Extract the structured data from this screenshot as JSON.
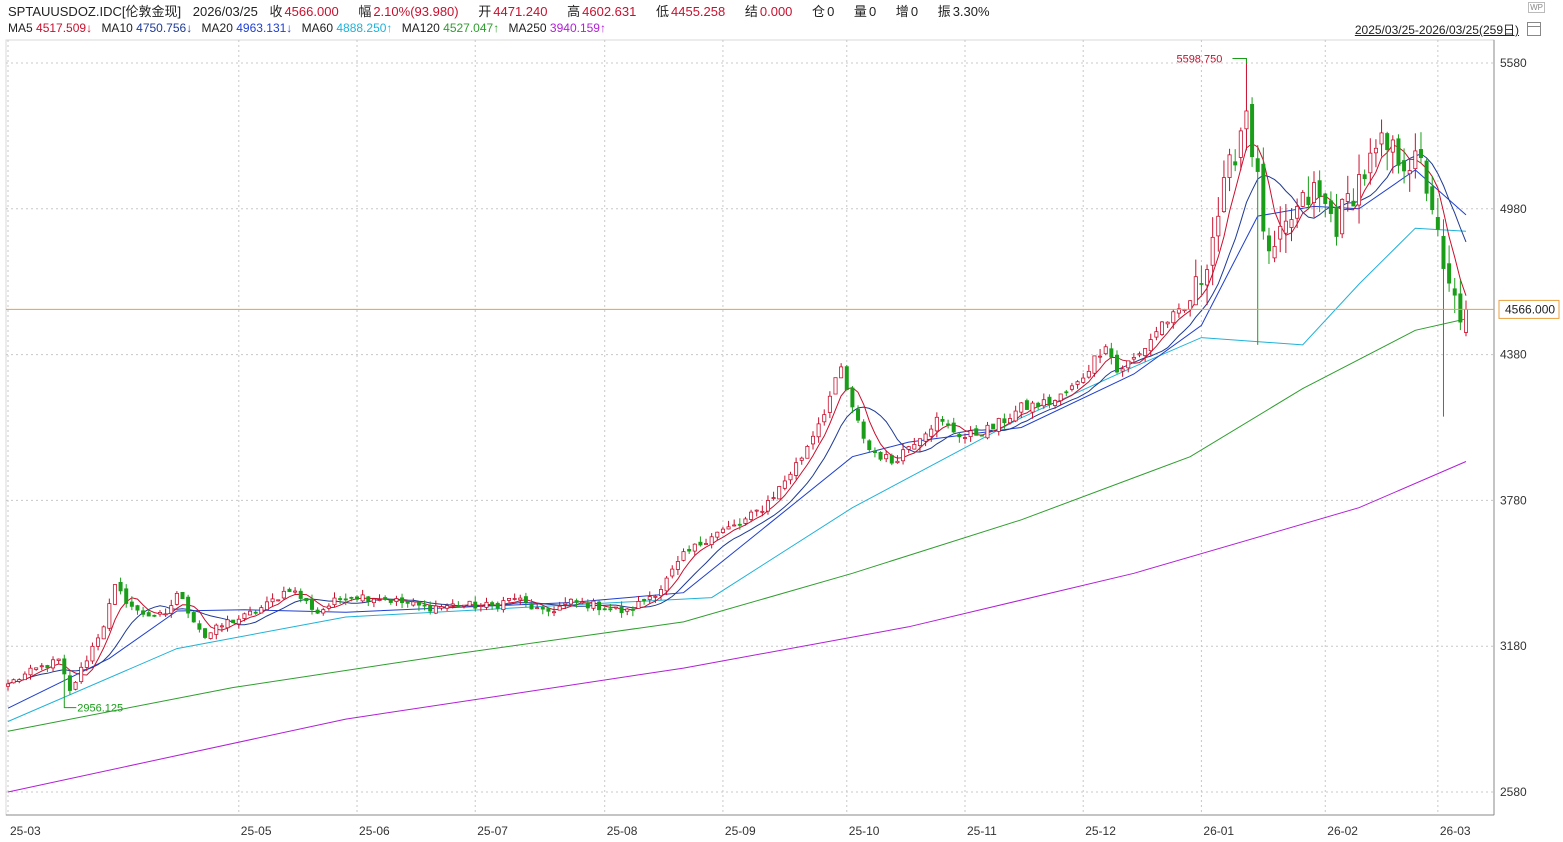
{
  "header": {
    "symbol": "SPTAUUSDOZ.IDC[伦敦金现]",
    "date": "2026/03/25",
    "close_label": "收",
    "close": "4566.000",
    "amp_label": "幅",
    "amp": "2.10%(93.980)",
    "open_label": "开",
    "open": "4471.240",
    "high_label": "高",
    "high": "4602.631",
    "low_label": "低",
    "low": "4455.258",
    "settle_label": "结",
    "settle": "0.000",
    "oi_label": "仓",
    "oi": "0",
    "vol_label": "量",
    "vol": "0",
    "inc_label": "增",
    "inc": "0",
    "swing_label": "振",
    "swing": "3.30%",
    "range": "2025/03/25-2026/03/25(259日)"
  },
  "ma_legend": [
    {
      "name": "MA5",
      "value": "4517.509↓",
      "color": "#c8102e"
    },
    {
      "name": "MA10",
      "value": "4750.756↓",
      "color": "#1f3a93"
    },
    {
      "name": "MA20",
      "value": "4963.131↓",
      "color": "#1f3fd0"
    },
    {
      "name": "MA60",
      "value": "4888.250↑",
      "color": "#20b2d8"
    },
    {
      "name": "MA120",
      "value": "4527.047↑",
      "color": "#2e9e2e"
    },
    {
      "name": "MA250",
      "value": "3940.159↑",
      "color": "#b21fd6"
    }
  ],
  "icons": [
    "wp-icon",
    "calendar-icon"
  ],
  "colors": {
    "up": "#c8102e",
    "down": "#1a9e1a",
    "current_line": "#e8a040",
    "current_tag_border": "#e8a040"
  },
  "chart_data": {
    "type": "candlestick",
    "y_ticks": [
      2580,
      3180,
      3780,
      4380,
      4980,
      5580
    ],
    "ylim": [
      2580,
      5640
    ],
    "x_labels": [
      "25-03",
      "25-05",
      "25-06",
      "25-07",
      "25-08",
      "25-09",
      "25-10",
      "25-11",
      "25-12",
      "26-01",
      "26-02",
      "26-03"
    ],
    "x_label_index": [
      0,
      41,
      62,
      83,
      106,
      127,
      149,
      170,
      191,
      212,
      234,
      254
    ],
    "current_price": 4566.0,
    "current_price_label": "4566.000",
    "max_label": "5598.750",
    "min_label": "2956.125",
    "grid": true,
    "anchors": [
      [
        0,
        3025
      ],
      [
        5,
        3085
      ],
      [
        9,
        3120
      ],
      [
        11,
        2990
      ],
      [
        17,
        3270
      ],
      [
        19,
        3420
      ],
      [
        23,
        3320
      ],
      [
        28,
        3300
      ],
      [
        30,
        3400
      ],
      [
        35,
        3220
      ],
      [
        39,
        3280
      ],
      [
        42,
        3300
      ],
      [
        46,
        3350
      ],
      [
        50,
        3420
      ],
      [
        55,
        3320
      ],
      [
        60,
        3390
      ],
      [
        66,
        3380
      ],
      [
        74,
        3340
      ],
      [
        80,
        3350
      ],
      [
        86,
        3345
      ],
      [
        90,
        3380
      ],
      [
        95,
        3315
      ],
      [
        100,
        3360
      ],
      [
        104,
        3350
      ],
      [
        110,
        3320
      ],
      [
        116,
        3420
      ],
      [
        120,
        3550
      ],
      [
        125,
        3640
      ],
      [
        130,
        3680
      ],
      [
        134,
        3750
      ],
      [
        137,
        3830
      ],
      [
        141,
        3960
      ],
      [
        145,
        4150
      ],
      [
        148,
        4320
      ],
      [
        150,
        4150
      ],
      [
        153,
        3990
      ],
      [
        157,
        3940
      ],
      [
        162,
        4050
      ],
      [
        165,
        4110
      ],
      [
        170,
        4040
      ],
      [
        175,
        4080
      ],
      [
        180,
        4160
      ],
      [
        186,
        4190
      ],
      [
        190,
        4260
      ],
      [
        195,
        4430
      ],
      [
        197,
        4310
      ],
      [
        201,
        4380
      ],
      [
        205,
        4510
      ],
      [
        209,
        4560
      ],
      [
        212,
        4700
      ],
      [
        216,
        5050
      ],
      [
        220,
        5400
      ],
      [
        222,
        5080
      ],
      [
        224,
        4750
      ],
      [
        228,
        4940
      ],
      [
        232,
        5050
      ],
      [
        236,
        4920
      ],
      [
        240,
        5100
      ],
      [
        244,
        5230
      ],
      [
        247,
        5200
      ],
      [
        251,
        5150
      ],
      [
        253,
        5000
      ],
      [
        255,
        4700
      ],
      [
        258,
        4550
      ],
      [
        259,
        4566
      ]
    ],
    "ma_series": [
      {
        "name": "MA60",
        "color": "#20b2d8",
        "points": [
          [
            0,
            2870
          ],
          [
            30,
            3170
          ],
          [
            60,
            3300
          ],
          [
            100,
            3350
          ],
          [
            125,
            3380
          ],
          [
            150,
            3750
          ],
          [
            180,
            4120
          ],
          [
            200,
            4330
          ],
          [
            212,
            4450
          ],
          [
            230,
            4420
          ],
          [
            240,
            4670
          ],
          [
            250,
            4900
          ],
          [
            259,
            4888
          ]
        ]
      },
      {
        "name": "MA120",
        "color": "#2e9e2e",
        "points": [
          [
            0,
            2830
          ],
          [
            40,
            3010
          ],
          [
            80,
            3150
          ],
          [
            120,
            3280
          ],
          [
            150,
            3480
          ],
          [
            180,
            3700
          ],
          [
            210,
            3960
          ],
          [
            230,
            4240
          ],
          [
            250,
            4480
          ],
          [
            259,
            4527
          ]
        ]
      },
      {
        "name": "MA250",
        "color": "#b21fd6",
        "points": [
          [
            0,
            2580
          ],
          [
            60,
            2880
          ],
          [
            120,
            3090
          ],
          [
            160,
            3260
          ],
          [
            200,
            3480
          ],
          [
            240,
            3750
          ],
          [
            259,
            3940
          ]
        ]
      },
      {
        "name": "MA20",
        "color": "#1f3fd0",
        "points": [
          [
            0,
            2925
          ],
          [
            18,
            3130
          ],
          [
            30,
            3325
          ],
          [
            42,
            3330
          ],
          [
            60,
            3320
          ],
          [
            100,
            3360
          ],
          [
            120,
            3400
          ],
          [
            135,
            3680
          ],
          [
            150,
            3960
          ],
          [
            160,
            4020
          ],
          [
            180,
            4080
          ],
          [
            200,
            4300
          ],
          [
            212,
            4500
          ],
          [
            222,
            4950
          ],
          [
            232,
            4990
          ],
          [
            240,
            4980
          ],
          [
            250,
            5140
          ],
          [
            259,
            4955
          ]
        ]
      }
    ]
  }
}
